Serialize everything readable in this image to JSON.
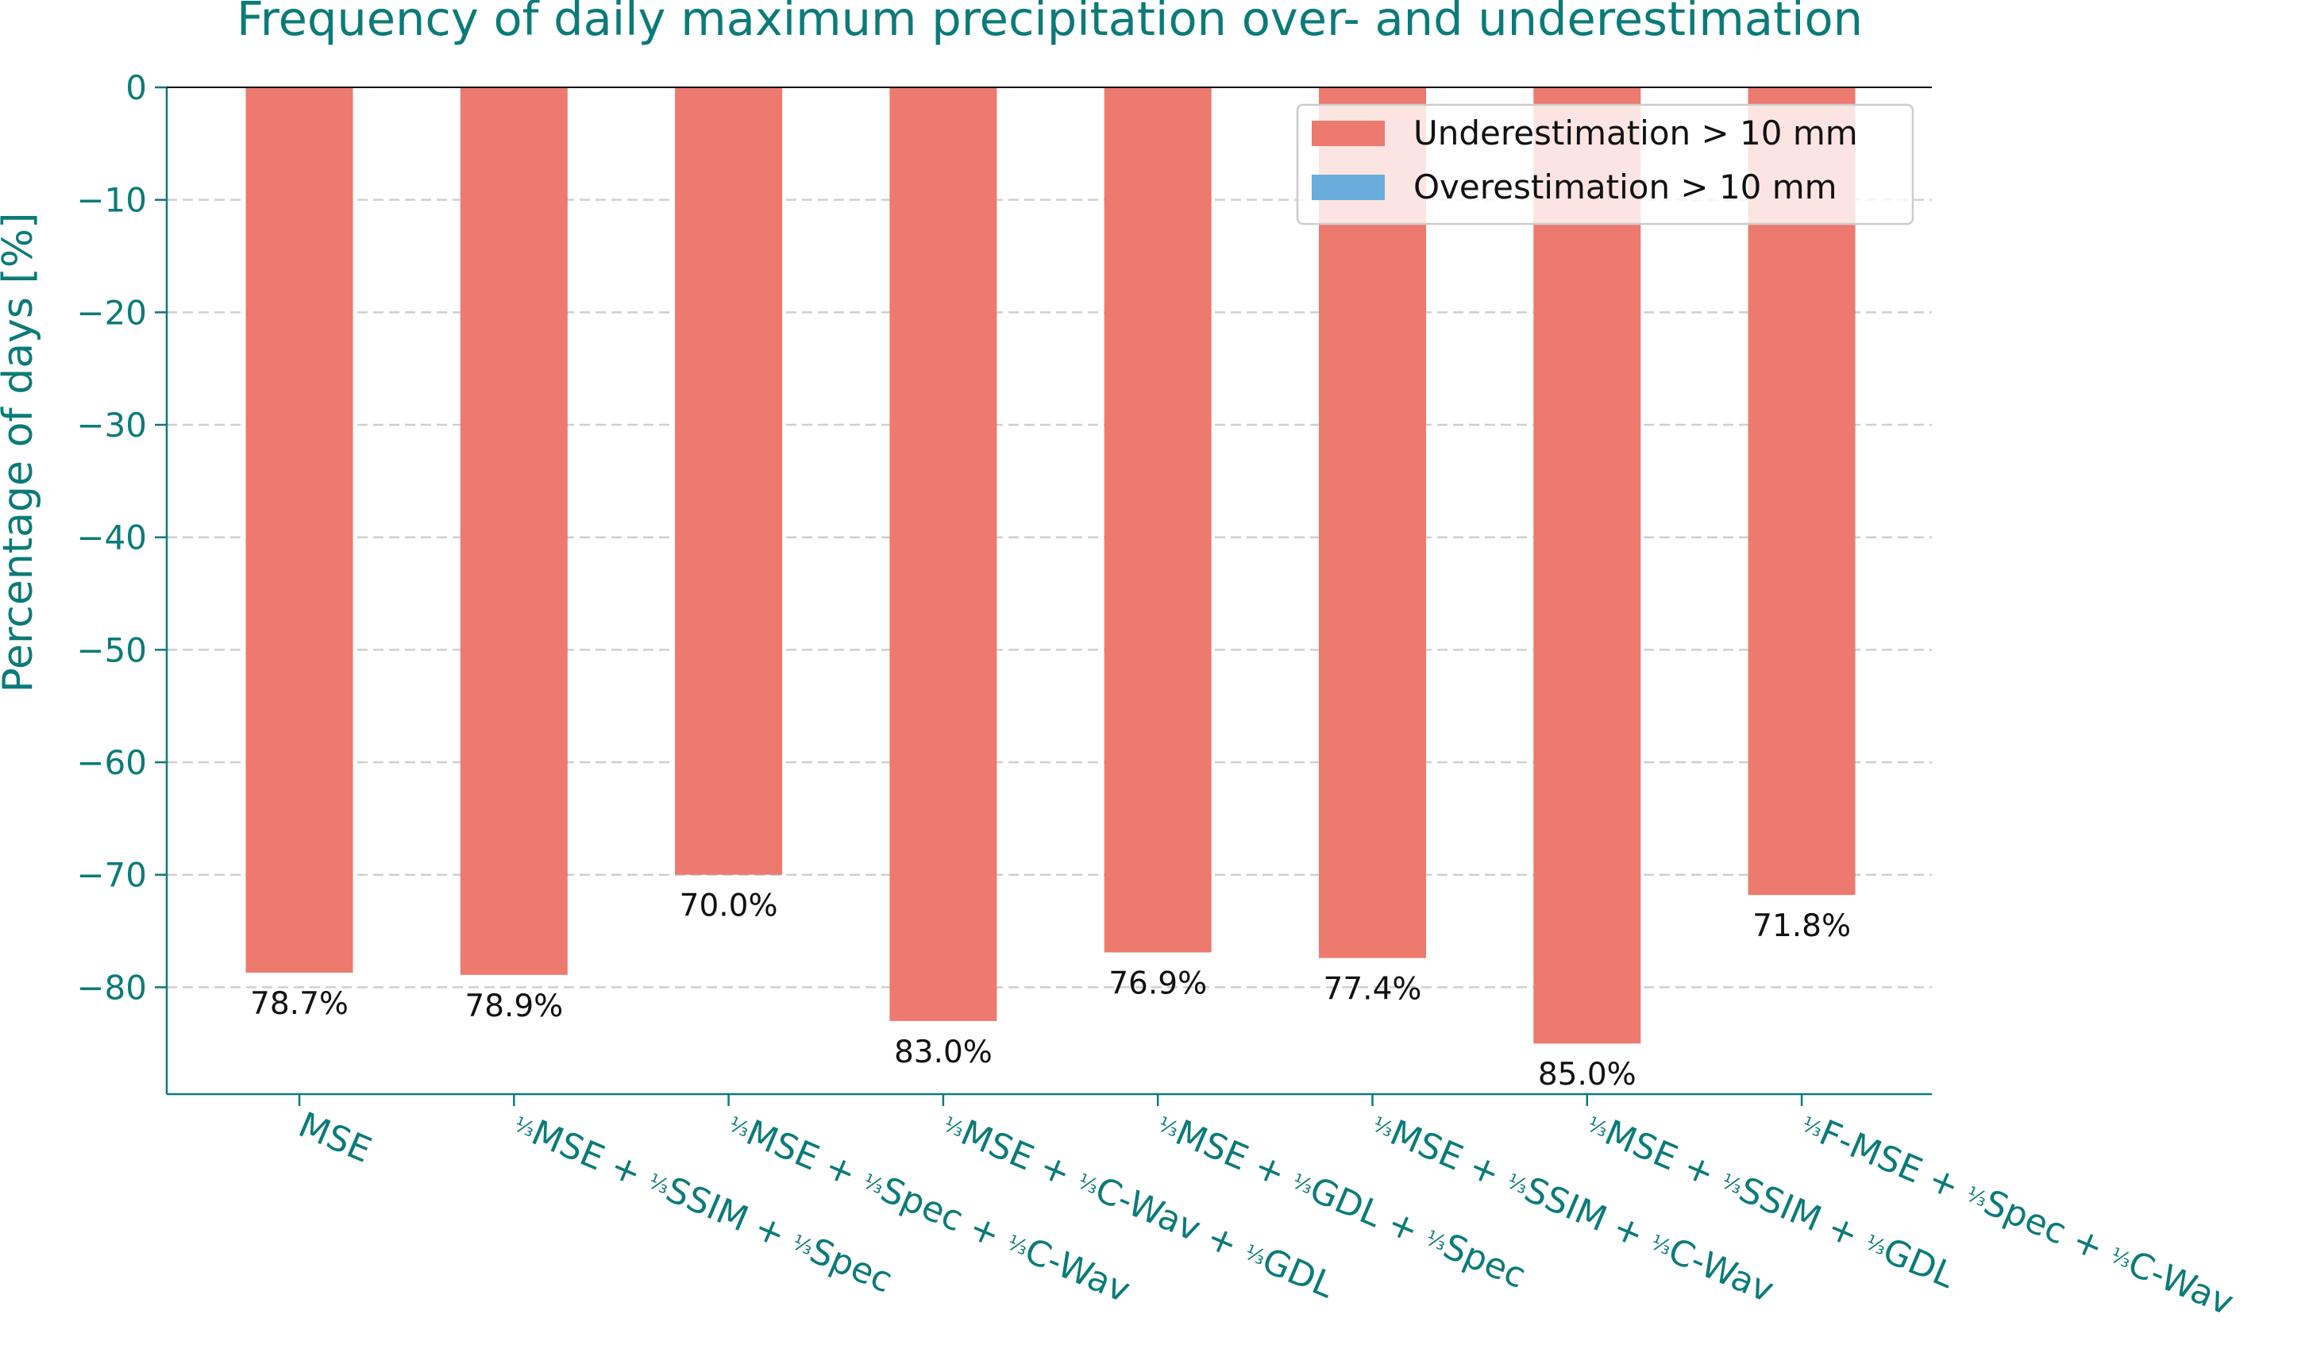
{
  "chart_data": {
    "type": "bar",
    "title": "Frequency of daily maximum precipitation over- and underestimation",
    "xlabel": "",
    "ylabel": "Percentage of days [%]",
    "ylim": [
      -89.5,
      0
    ],
    "yticks": [
      0,
      -10,
      -20,
      -30,
      -40,
      -50,
      -60,
      -70,
      -80
    ],
    "ytick_labels": [
      "0",
      "−10",
      "−20",
      "−30",
      "−40",
      "−50",
      "−60",
      "−70",
      "−80"
    ],
    "categories": [
      "MSE",
      "1/3MSE + 1/3SSIM + 1/3Spec",
      "1/3MSE + 1/3Spec + 1/3C-Wav",
      "1/3MSE + 1/3C-Wav + 1/3GDL",
      "1/3MSE + 1/3GDL + 1/3Spec",
      "1/3MSE + 1/3SSIM + 1/3C-Wav",
      "1/3MSE + 1/3SSIM + 1/3GDL",
      "1/3F-MSE + 1/3Spec + 1/3C-Wav"
    ],
    "category_parts": [
      [
        "MSE"
      ],
      [
        "MSE + ",
        "SSIM + ",
        "Spec"
      ],
      [
        "MSE + ",
        "Spec + ",
        "C-Wav"
      ],
      [
        "MSE + ",
        "C-Wav + ",
        "GDL"
      ],
      [
        "MSE + ",
        "GDL + ",
        "Spec"
      ],
      [
        "MSE + ",
        "SSIM + ",
        "C-Wav"
      ],
      [
        "MSE + ",
        "SSIM + ",
        "GDL"
      ],
      [
        "F-MSE + ",
        "Spec + ",
        "C-Wav"
      ]
    ],
    "series": [
      {
        "name": "Underestimation > 10 mm",
        "color": "#ec7a6e",
        "values": [
          -78.7,
          -78.9,
          -70.0,
          -83.0,
          -76.9,
          -77.4,
          -85.0,
          -71.8
        ]
      },
      {
        "name": "Overestimation > 10 mm",
        "color": "#6aaddc",
        "values": [
          0,
          0,
          0,
          0,
          0,
          0,
          0,
          0
        ]
      }
    ],
    "data_labels": [
      "78.7%",
      "78.9%",
      "70.0%",
      "83.0%",
      "76.9%",
      "77.4%",
      "85.0%",
      "71.8%"
    ],
    "grid": "y dashed",
    "legend_position": "top-right",
    "axis_color": "#0b7b78"
  }
}
